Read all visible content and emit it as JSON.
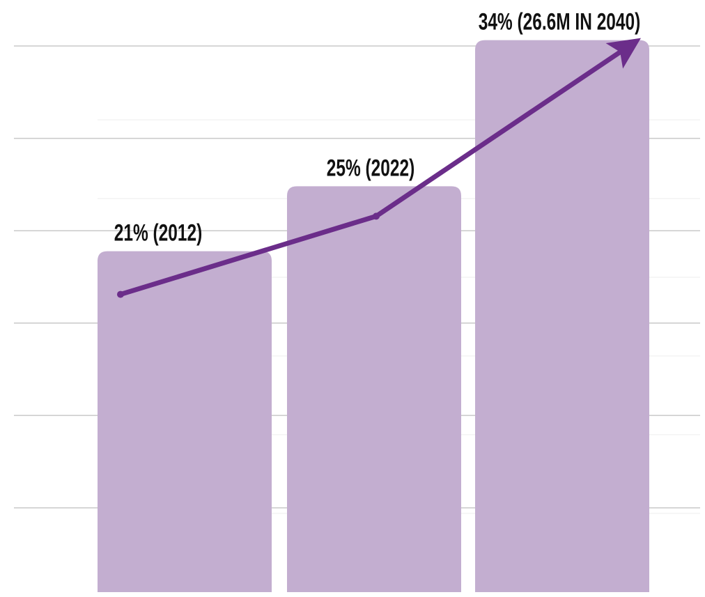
{
  "chart_data": {
    "type": "bar",
    "categories": [
      null,
      null,
      null
    ],
    "values": [
      21,
      25,
      34
    ],
    "value_labels": [
      "21% (2012)",
      "25% (2022)",
      "34% (26.6M IN 2040)"
    ],
    "color": "#c3aed0",
    "trend_color": "#6b2d8a",
    "ylim": [
      0,
      36
    ]
  }
}
